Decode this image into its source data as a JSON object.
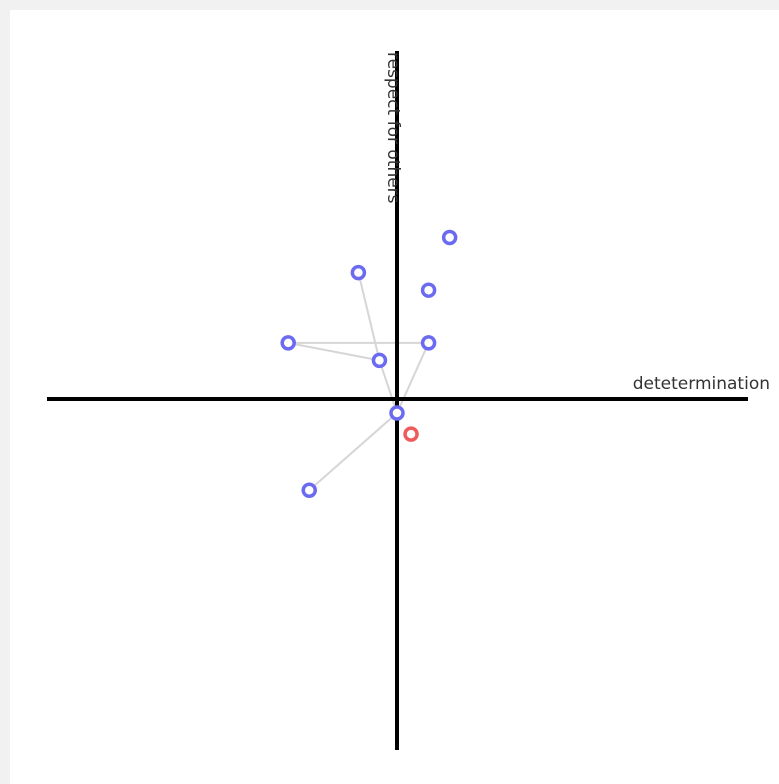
{
  "chart_data": {
    "type": "scatter",
    "title": "",
    "xlabel": "detetermination",
    "ylabel": "respect for others",
    "xlim": [
      -1,
      1
    ],
    "ylim": [
      -1,
      1
    ],
    "grid": false,
    "colors": {
      "points": "#6b6bf2",
      "reference": "#ef5a5a",
      "connectors": "#d6d6d6",
      "axes": "#000000"
    },
    "reference_point": {
      "x": 0.04,
      "y": -0.1
    },
    "points": [
      {
        "x": 0.0,
        "y": -0.04
      },
      {
        "x": -0.05,
        "y": 0.11
      },
      {
        "x": -0.31,
        "y": 0.16
      },
      {
        "x": 0.09,
        "y": 0.16
      },
      {
        "x": -0.11,
        "y": 0.36
      },
      {
        "x": 0.09,
        "y": 0.31
      },
      {
        "x": 0.15,
        "y": 0.46
      },
      {
        "x": -0.25,
        "y": -0.26
      }
    ],
    "connections": [
      [
        0,
        1
      ],
      [
        1,
        4
      ],
      [
        1,
        2
      ],
      [
        2,
        3
      ],
      [
        3,
        0
      ],
      [
        0,
        7
      ]
    ]
  }
}
